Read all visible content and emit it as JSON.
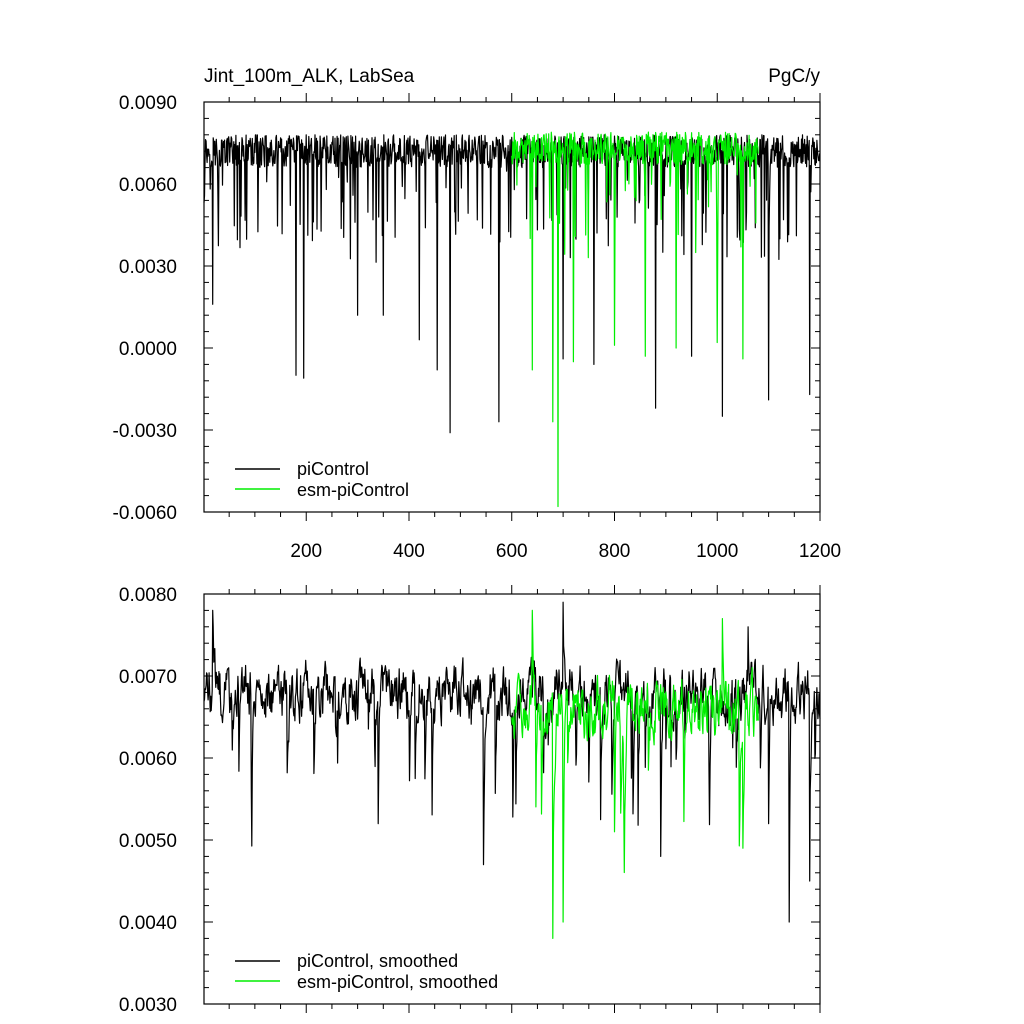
{
  "chart_data": [
    {
      "type": "line",
      "title_left": "Jint_100m_ALK, LabSea",
      "title_right": "PgC/y",
      "xlabel": "",
      "ylabel": "",
      "xlim": [
        1,
        1200
      ],
      "ylim": [
        -0.006,
        0.009
      ],
      "x_ticks": [
        200,
        400,
        600,
        800,
        1000,
        1200
      ],
      "x_tick_labels": [
        "200",
        "400",
        "600",
        "800",
        "1000",
        "1200"
      ],
      "y_ticks": [
        -0.006,
        -0.003,
        0.0,
        0.003,
        0.006,
        0.009
      ],
      "y_tick_labels": [
        "-0.0060",
        "-0.0030",
        "0.0000",
        "0.0030",
        "0.0060",
        "0.0090"
      ],
      "grid": false,
      "legend_position": "bottom-left",
      "series": [
        {
          "name": "piControl",
          "color": "#000000",
          "x_range": [
            1,
            1200
          ],
          "typical": 0.0072,
          "spread": 0.0006,
          "spikes": [
            [
              18,
              0.0016
            ],
            [
              180,
              -0.001
            ],
            [
              195,
              -0.0011
            ],
            [
              300,
              0.0012
            ],
            [
              350,
              0.0012
            ],
            [
              420,
              0.0003
            ],
            [
              455,
              -0.0008
            ],
            [
              480,
              -0.0031
            ],
            [
              575,
              -0.0027
            ],
            [
              700,
              -0.0004
            ],
            [
              760,
              -0.0006
            ],
            [
              880,
              -0.0022
            ],
            [
              950,
              -0.0003
            ],
            [
              1010,
              -0.0025
            ],
            [
              1100,
              -0.0019
            ],
            [
              1180,
              -0.0017
            ]
          ]
        },
        {
          "name": "esm-piControl",
          "color": "#00ee00",
          "x_range": [
            600,
            1080
          ],
          "typical": 0.0073,
          "spread": 0.0006,
          "spikes": [
            [
              640,
              -0.0008
            ],
            [
              680,
              -0.0027
            ],
            [
              690,
              -0.0058
            ],
            [
              720,
              -0.0005
            ],
            [
              800,
              0.0001
            ],
            [
              860,
              -0.0003
            ],
            [
              920,
              0.0
            ],
            [
              1000,
              0.0002
            ],
            [
              1050,
              -0.0004
            ]
          ]
        }
      ]
    },
    {
      "type": "line",
      "xlabel": "",
      "ylabel": "",
      "xlim": [
        1,
        1200
      ],
      "ylim": [
        0.003,
        0.008
      ],
      "x_ticks": [
        200,
        400,
        600,
        800,
        1000,
        1200
      ],
      "y_ticks": [
        0.003,
        0.004,
        0.005,
        0.006,
        0.007,
        0.008
      ],
      "y_tick_labels": [
        "0.0030",
        "0.0040",
        "0.0050",
        "0.0060",
        "0.0070",
        "0.0080"
      ],
      "grid": false,
      "legend_position": "bottom-left",
      "series": [
        {
          "name": "piControl, smoothed",
          "color": "#000000",
          "x_range": [
            1,
            1200
          ],
          "typical": 0.0068,
          "spread": 0.0006,
          "spikes": [
            [
              18,
              0.0078
            ],
            [
              340,
              0.0052
            ],
            [
              545,
              0.0047
            ],
            [
              700,
              0.0079
            ],
            [
              890,
              0.0048
            ],
            [
              1060,
              0.0076
            ],
            [
              1100,
              0.0052
            ],
            [
              1140,
              0.004
            ],
            [
              1180,
              0.0045
            ]
          ]
        },
        {
          "name": "esm-piControl, smoothed",
          "color": "#00ee00",
          "x_range": [
            600,
            1080
          ],
          "typical": 0.0066,
          "spread": 0.0006,
          "spikes": [
            [
              640,
              0.0078
            ],
            [
              680,
              0.0038
            ],
            [
              700,
              0.004
            ],
            [
              800,
              0.0051
            ],
            [
              1050,
              0.0049
            ],
            [
              1010,
              0.0077
            ]
          ]
        }
      ]
    }
  ]
}
